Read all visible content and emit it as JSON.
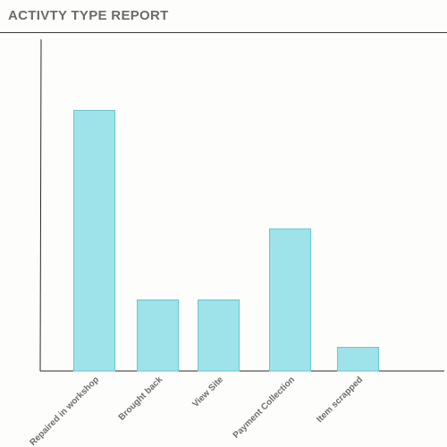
{
  "header": {
    "title": "ACTIVTY TYPE REPORT"
  },
  "colors": {
    "bar_fill": "#9de3e9",
    "bar_stroke": "#69c6cf",
    "axis": "#2b2b2b",
    "title": "#6b6b6b",
    "tick_label": "#6e6e6e"
  },
  "chart_data": {
    "type": "bar",
    "title": "ACTIVTY TYPE REPORT",
    "xlabel": "",
    "ylabel": "",
    "categories": [
      "Repaired in workshop",
      "Brought back",
      "View Site",
      "Payment Collection",
      "Item scrapped"
    ],
    "values": [
      11,
      3,
      3,
      6,
      1
    ],
    "ylim": [
      0,
      14
    ],
    "grid": false,
    "legend": "none",
    "y_tick_labels_shown": false
  }
}
